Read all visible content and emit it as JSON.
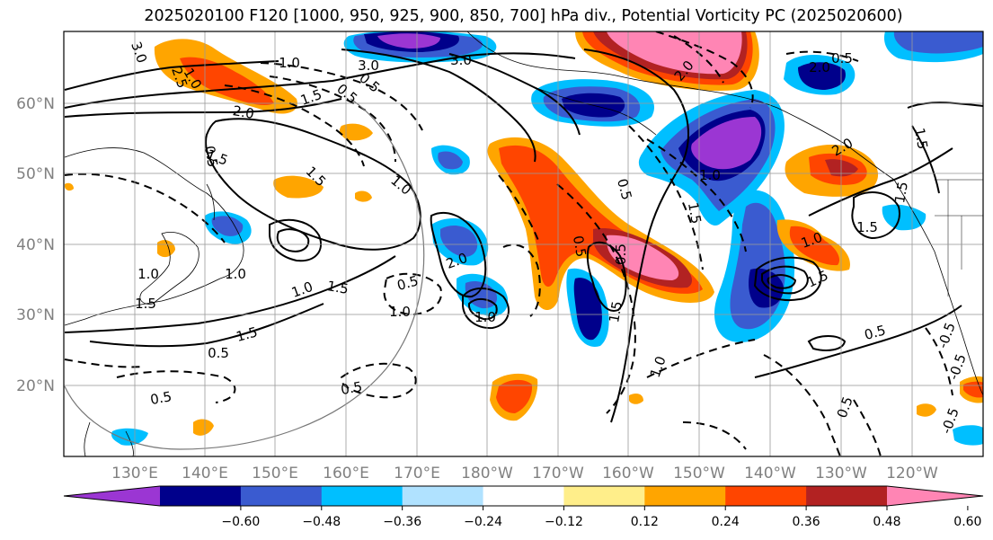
{
  "title": "2025020100 F120 [1000, 950, 925, 900, 850, 700] hPa div., Potential Vorticity PC (2025020600)",
  "lat_labels": [
    "60°N",
    "50°N",
    "40°N",
    "30°N",
    "20°N"
  ],
  "lon_labels": [
    "130°E",
    "140°E",
    "150°E",
    "160°E",
    "170°E",
    "180°W",
    "170°W",
    "160°W",
    "150°W",
    "140°W",
    "130°W",
    "120°W"
  ],
  "colorbar": {
    "colors": [
      "#9b36d3",
      "#00008b",
      "#3a5bd0",
      "#00bfff",
      "#b0e2ff",
      "#ffffff",
      "#ffee8a",
      "#ffa500",
      "#ff4500",
      "#b22222",
      "#ff85b4"
    ],
    "ticks": [
      "−0.60",
      "−0.48",
      "−0.36",
      "−0.24",
      "−0.12",
      "0.12",
      "0.24",
      "0.36",
      "0.48",
      "0.60"
    ]
  },
  "contour_labels": [
    "3.0",
    "2.5",
    "1.0",
    "1.5",
    "0.5",
    "2.0",
    "3.0",
    "0.5",
    "1.5",
    "2.0",
    "3.0",
    "0.5",
    "1.5",
    "1.0",
    "1.5",
    "0.5",
    "1.0",
    "0.5",
    "1.5",
    "1.0",
    "1.5",
    "0.5",
    "1.0",
    "0.5",
    "1.0",
    "2.0",
    "1.0",
    "0.5",
    "1.5",
    "2.0",
    "1.0",
    "0.5",
    "0.5",
    "1.0",
    "0.5",
    "0.5",
    "0.5",
    "1.5",
    "2.0",
    "1.5",
    "1.5",
    "-0.5",
    "-0.5",
    "-0.5",
    "1.5",
    "1.0",
    "1.5",
    "1.0"
  ]
}
